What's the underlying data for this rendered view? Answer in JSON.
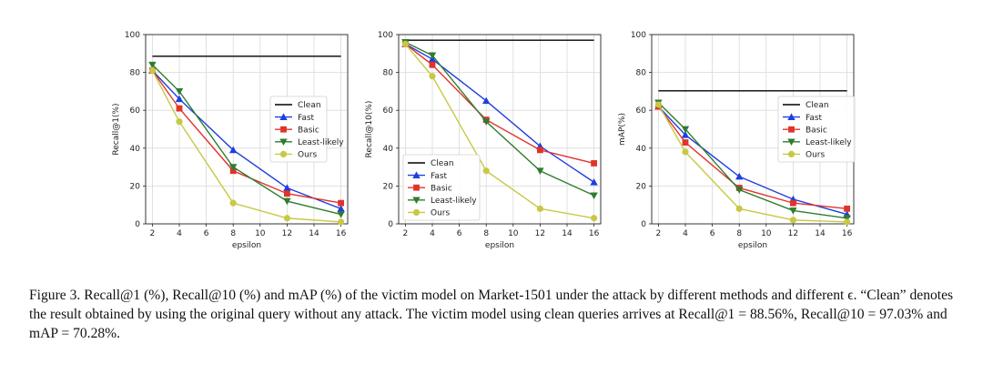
{
  "figure_caption": "Figure 3. Recall@1 (%), Recall@10 (%) and mAP (%) of the victim model on Market-1501 under the attack by different methods and different ϵ. “Clean” denotes the result obtained by using the original query without any attack. The victim model using clean queries arrives at Recall@1 = 88.56%, Recall@10 = 97.03% and mAP = 70.28%.",
  "series_styles": [
    {
      "name": "Clean",
      "color": "#000000",
      "marker": "none"
    },
    {
      "name": "Fast",
      "color": "#1f3fe0",
      "marker": "triangle-up"
    },
    {
      "name": "Basic",
      "color": "#e0332b",
      "marker": "square"
    },
    {
      "name": "Least-likely",
      "color": "#2e7d2e",
      "marker": "triangle-down"
    },
    {
      "name": "Ours",
      "color": "#c8c846",
      "marker": "circle"
    }
  ],
  "chart_data": [
    {
      "type": "line",
      "xlabel": "epsilon",
      "ylabel": "Recall@1(%)",
      "xticks": [
        2,
        4,
        6,
        8,
        10,
        12,
        14,
        16
      ],
      "yticks": [
        0,
        20,
        40,
        60,
        80,
        100
      ],
      "xlim": [
        1.5,
        16.5
      ],
      "ylim": [
        0,
        100
      ],
      "grid": true,
      "legend_position": "center-right",
      "x": [
        2,
        4,
        8,
        12,
        16
      ],
      "series": [
        {
          "name": "Clean",
          "values": [
            88.56,
            88.56,
            88.56,
            88.56,
            88.56
          ]
        },
        {
          "name": "Fast",
          "values": [
            81,
            66,
            39,
            19,
            8
          ]
        },
        {
          "name": "Basic",
          "values": [
            81,
            61,
            28,
            16,
            11
          ]
        },
        {
          "name": "Least-likely",
          "values": [
            84,
            70,
            30,
            12,
            5
          ]
        },
        {
          "name": "Ours",
          "values": [
            81,
            54,
            11,
            3,
            1
          ]
        }
      ]
    },
    {
      "type": "line",
      "xlabel": "epsilon",
      "ylabel": "Recall@10(%)",
      "xticks": [
        2,
        4,
        6,
        8,
        10,
        12,
        14,
        16
      ],
      "yticks": [
        0,
        20,
        40,
        60,
        80,
        100
      ],
      "xlim": [
        1.5,
        16.5
      ],
      "ylim": [
        0,
        100
      ],
      "grid": true,
      "legend_position": "lower-left",
      "x": [
        2,
        4,
        8,
        12,
        16
      ],
      "series": [
        {
          "name": "Clean",
          "values": [
            97.03,
            97.03,
            97.03,
            97.03,
            97.03
          ]
        },
        {
          "name": "Fast",
          "values": [
            95,
            87,
            65,
            41,
            22
          ]
        },
        {
          "name": "Basic",
          "values": [
            95,
            84,
            55,
            39,
            32
          ]
        },
        {
          "name": "Least-likely",
          "values": [
            96,
            89,
            54,
            28,
            15
          ]
        },
        {
          "name": "Ours",
          "values": [
            95,
            78,
            28,
            8,
            3
          ]
        }
      ]
    },
    {
      "type": "line",
      "xlabel": "epsilon",
      "ylabel": "mAP(%)",
      "xticks": [
        2,
        4,
        6,
        8,
        10,
        12,
        14,
        16
      ],
      "yticks": [
        0,
        20,
        40,
        60,
        80,
        100
      ],
      "xlim": [
        1.5,
        16.5
      ],
      "ylim": [
        0,
        100
      ],
      "grid": true,
      "legend_position": "center-right",
      "x": [
        2,
        4,
        8,
        12,
        16
      ],
      "series": [
        {
          "name": "Clean",
          "values": [
            70.28,
            70.28,
            70.28,
            70.28,
            70.28
          ]
        },
        {
          "name": "Fast",
          "values": [
            62,
            47,
            25,
            13,
            5
          ]
        },
        {
          "name": "Basic",
          "values": [
            62,
            43,
            19,
            11,
            8
          ]
        },
        {
          "name": "Least-likely",
          "values": [
            64,
            50,
            18,
            7,
            3
          ]
        },
        {
          "name": "Ours",
          "values": [
            63,
            38,
            8,
            2,
            1
          ]
        }
      ]
    }
  ]
}
